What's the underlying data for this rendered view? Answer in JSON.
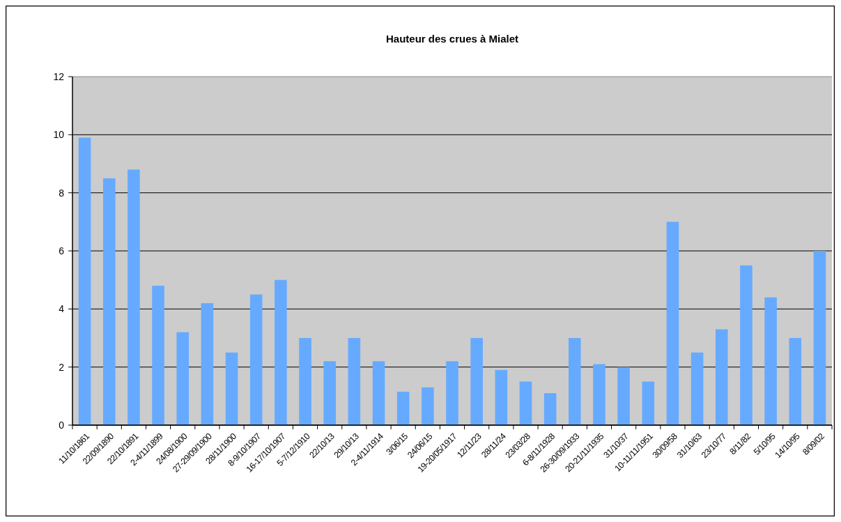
{
  "chart_data": {
    "type": "bar",
    "title": "Hauteur des crues à Mialet",
    "categories": [
      "11/10/1861",
      "22/09/1890",
      "22/10/1891",
      "2-4/11/1899",
      "24/08/1900",
      "27-29/09/1900",
      "28/11/1900",
      "8-9/10/1907",
      "16-17/10/1907",
      "5-7/12/1910",
      "22/10/13",
      "29/10/13",
      "2-4/11/1914",
      "3/06/15",
      "24/06/15",
      "19-20/05/1917",
      "12/11/23",
      "28/11/24",
      "23/03/28",
      "6-8/11/1928",
      "26-30/09/1933",
      "20-21/11/1935",
      "31/10/37",
      "10-11/11/1951",
      "30/09/58",
      "31/10/63",
      "23/10/77",
      "8/11/82",
      "5/10/95",
      "14/10/95",
      "8/09/02"
    ],
    "values": [
      9.9,
      8.5,
      8.8,
      4.8,
      3.2,
      4.2,
      2.5,
      4.5,
      5.0,
      3.0,
      2.2,
      3.0,
      2.2,
      1.15,
      1.3,
      2.2,
      3.0,
      1.9,
      1.5,
      1.1,
      3.0,
      2.1,
      2.0,
      1.5,
      7.0,
      2.5,
      3.3,
      5.5,
      4.4,
      3.0,
      6.0
    ],
    "color": "#66aaff",
    "ylim": [
      0,
      12
    ],
    "yticks": [
      0,
      2,
      4,
      6,
      8,
      10,
      12
    ],
    "grid": "y"
  }
}
